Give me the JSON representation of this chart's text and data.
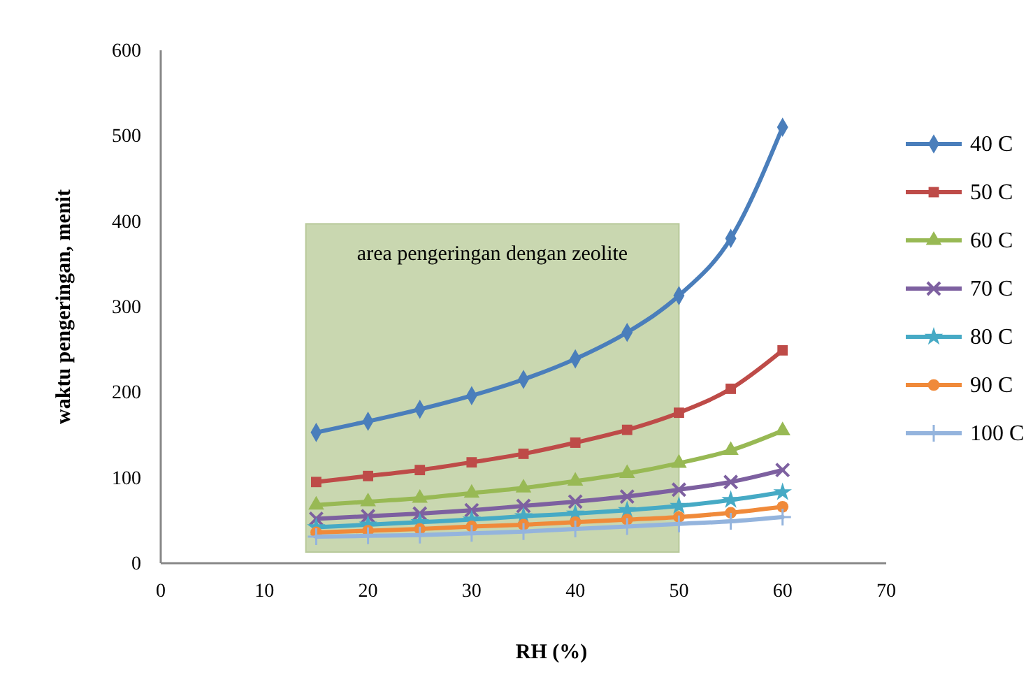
{
  "chart_data": {
    "type": "line",
    "xlabel": "RH (%)",
    "ylabel": "waktu pengeringan, menit",
    "xlim": [
      0,
      70
    ],
    "xticks": [
      0,
      10,
      20,
      30,
      40,
      50,
      60,
      70
    ],
    "ylim": [
      0,
      600
    ],
    "yticks": [
      0,
      100,
      200,
      300,
      400,
      500,
      600
    ],
    "grid": false,
    "legend": "right",
    "line_style": "solid",
    "bands": [
      {
        "axis": "x",
        "from": 14,
        "to": 50,
        "label": "area pengeringan dengan zeolite",
        "color": "#c9d7b0"
      }
    ],
    "series": [
      {
        "name": "40 C",
        "color": "#4a7ebb",
        "marker": "diamond",
        "x": [
          15,
          20,
          25,
          30,
          35,
          40,
          45,
          50,
          55,
          60
        ],
        "values": [
          153,
          166,
          180,
          196,
          215,
          239,
          270,
          313,
          380,
          510
        ]
      },
      {
        "name": "50 C",
        "color": "#be4b48",
        "marker": "square",
        "x": [
          15,
          20,
          25,
          30,
          35,
          40,
          45,
          50,
          55,
          60
        ],
        "values": [
          95,
          102,
          109,
          118,
          128,
          141,
          156,
          176,
          204,
          249
        ]
      },
      {
        "name": "60 C",
        "color": "#98b954",
        "marker": "triangle",
        "x": [
          15,
          20,
          25,
          30,
          35,
          40,
          45,
          50,
          55,
          60
        ],
        "values": [
          68,
          72,
          76,
          82,
          88,
          96,
          105,
          117,
          132,
          155
        ]
      },
      {
        "name": "70 C",
        "color": "#7d60a0",
        "marker": "cross",
        "x": [
          15,
          20,
          25,
          30,
          35,
          40,
          45,
          50,
          55,
          60
        ],
        "values": [
          52,
          55,
          58,
          62,
          67,
          72,
          78,
          86,
          95,
          109
        ]
      },
      {
        "name": "80 C",
        "color": "#46aac5",
        "marker": "star",
        "x": [
          15,
          20,
          25,
          30,
          35,
          40,
          45,
          50,
          55,
          60
        ],
        "values": [
          42,
          45,
          48,
          51,
          55,
          58,
          62,
          67,
          74,
          83
        ]
      },
      {
        "name": "90 C",
        "color": "#f08a3a",
        "marker": "circle",
        "x": [
          15,
          20,
          25,
          30,
          35,
          40,
          45,
          50,
          55,
          60
        ],
        "values": [
          36,
          38,
          40,
          43,
          45,
          48,
          51,
          54,
          59,
          66
        ]
      },
      {
        "name": "100 C",
        "color": "#94b4dd",
        "marker": "plus",
        "x": [
          15,
          20,
          25,
          30,
          35,
          40,
          45,
          50,
          55,
          60
        ],
        "values": [
          31,
          32,
          33,
          35,
          37,
          40,
          43,
          46,
          49,
          54
        ]
      }
    ]
  }
}
